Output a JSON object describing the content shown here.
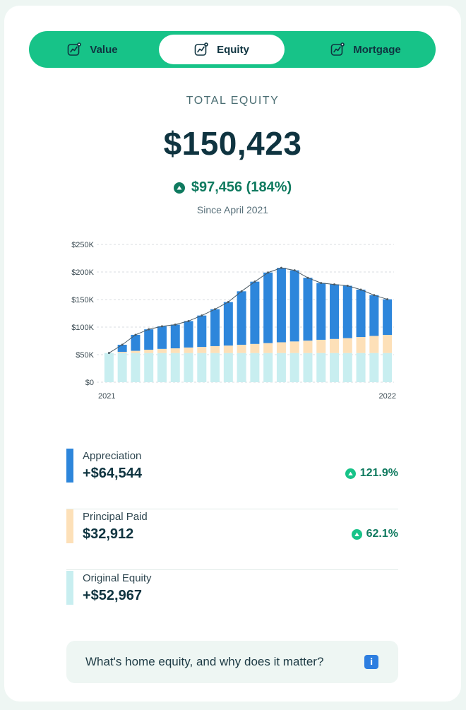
{
  "tabs": [
    {
      "label": "Value",
      "icon": "chart-line-icon"
    },
    {
      "label": "Equity",
      "icon": "chart-line-icon",
      "active": true
    },
    {
      "label": "Mortgage",
      "icon": "chart-line-icon"
    }
  ],
  "summary": {
    "label": "TOTAL EQUITY",
    "total": "$150,423",
    "change": "$97,456 (184%)",
    "since": "Since April 2021"
  },
  "colors": {
    "accent": "#17c388",
    "appreciation": "#2d86db",
    "principal": "#fde0b8",
    "original": "#c8eef0",
    "positive": "#0f7a5f"
  },
  "chart_data": {
    "type": "bar",
    "stacked": true,
    "x_labels": [
      "2021",
      "2022"
    ],
    "y_ticks": [
      "$0",
      "$50K",
      "$100K",
      "$150K",
      "$200K",
      "$250K"
    ],
    "ylim": [
      0,
      250000
    ],
    "grid": true,
    "series": [
      {
        "name": "Original Equity",
        "values": [
          52967,
          52967,
          52967,
          52967,
          52967,
          52967,
          52967,
          52967,
          52967,
          52967,
          52967,
          52967,
          52967,
          52967,
          52967,
          52967,
          52967,
          52967,
          52967,
          52967,
          52967,
          52967
        ]
      },
      {
        "name": "Principal Paid",
        "values": [
          0,
          2000,
          4000,
          6000,
          7500,
          8500,
          10000,
          11000,
          12500,
          13500,
          15000,
          16500,
          18000,
          19500,
          21000,
          22500,
          24000,
          25500,
          27000,
          29000,
          31000,
          32912
        ]
      },
      {
        "name": "Appreciation",
        "values": [
          0,
          13000,
          29000,
          37000,
          41000,
          43000,
          48000,
          57000,
          67000,
          79000,
          97000,
          113000,
          128000,
          135000,
          129000,
          114000,
          103000,
          99000,
          95000,
          86000,
          74000,
          64544
        ]
      }
    ]
  },
  "breakdown": [
    {
      "name": "Appreciation",
      "amount": "+$64,544",
      "pct": "121.9%",
      "color": "#2d86db"
    },
    {
      "name": "Principal Paid",
      "amount": "$32,912",
      "pct": "62.1%",
      "color": "#fde0b8"
    },
    {
      "name": "Original Equity",
      "amount": "+$52,967",
      "pct": "",
      "color": "#c8eef0"
    }
  ],
  "info": {
    "text": "What's home equity, and why does it matter?",
    "icon": "i"
  }
}
